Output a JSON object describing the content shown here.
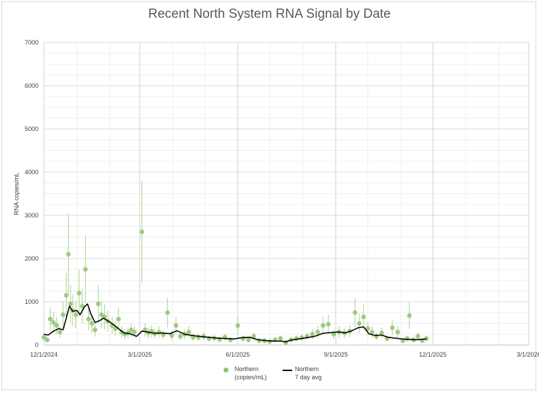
{
  "chart_data": {
    "type": "scatter",
    "title": "Recent North System RNA Signal by Date",
    "ylabel": "RNA copies/mL",
    "xlabel": "",
    "ylim": [
      0,
      7000
    ],
    "xlim": [
      "2024-12-01",
      "2026-03-01"
    ],
    "y_ticks": [
      "0",
      "1000",
      "2000",
      "3000",
      "4000",
      "5000",
      "6000",
      "7000"
    ],
    "x_ticks": [
      "12/1/2024",
      "3/1/2025",
      "6/1/2025",
      "9/1/2025",
      "12/1/2025",
      "3/1/2026"
    ],
    "grid": true,
    "legend_position": "bottom",
    "colors": {
      "points": "#8cc06a",
      "error_bars": "#a9d18e",
      "avg_line": "#000000"
    },
    "series": [
      {
        "name": "Northern (copies/mL)",
        "kind": "scatter-with-error-bars",
        "points": [
          [
            "2024-12-01",
            180
          ],
          [
            "2024-12-04",
            120
          ],
          [
            "2024-12-07",
            600
          ],
          [
            "2024-12-10",
            520
          ],
          [
            "2024-12-13",
            450
          ],
          [
            "2024-12-16",
            300
          ],
          [
            "2024-12-19",
            700
          ],
          [
            "2024-12-22",
            1150
          ],
          [
            "2024-12-24",
            2100
          ],
          [
            "2024-12-26",
            950
          ],
          [
            "2024-12-28",
            800
          ],
          [
            "2024-12-31",
            700
          ],
          [
            "2025-01-03",
            1200
          ],
          [
            "2025-01-06",
            900
          ],
          [
            "2025-01-09",
            1750
          ],
          [
            "2025-01-12",
            600
          ],
          [
            "2025-01-15",
            500
          ],
          [
            "2025-01-18",
            350
          ],
          [
            "2025-01-21",
            950
          ],
          [
            "2025-01-24",
            700
          ],
          [
            "2025-01-27",
            650
          ],
          [
            "2025-01-30",
            550
          ],
          [
            "2025-02-03",
            450
          ],
          [
            "2025-02-06",
            380
          ],
          [
            "2025-02-09",
            600
          ],
          [
            "2025-02-12",
            300
          ],
          [
            "2025-02-15",
            250
          ],
          [
            "2025-02-18",
            280
          ],
          [
            "2025-02-21",
            350
          ],
          [
            "2025-02-24",
            300
          ],
          [
            "2025-03-03",
            2620
          ],
          [
            "2025-03-06",
            350
          ],
          [
            "2025-03-09",
            280
          ],
          [
            "2025-03-12",
            320
          ],
          [
            "2025-03-15",
            260
          ],
          [
            "2025-03-19",
            300
          ],
          [
            "2025-03-23",
            240
          ],
          [
            "2025-03-27",
            750
          ],
          [
            "2025-03-31",
            220
          ],
          [
            "2025-04-04",
            450
          ],
          [
            "2025-04-08",
            200
          ],
          [
            "2025-04-12",
            250
          ],
          [
            "2025-04-16",
            300
          ],
          [
            "2025-04-20",
            180
          ],
          [
            "2025-04-25",
            180
          ],
          [
            "2025-04-30",
            200
          ],
          [
            "2025-05-05",
            150
          ],
          [
            "2025-05-10",
            160
          ],
          [
            "2025-05-15",
            130
          ],
          [
            "2025-05-20",
            180
          ],
          [
            "2025-05-25",
            120
          ],
          [
            "2025-06-01",
            450
          ],
          [
            "2025-06-06",
            150
          ],
          [
            "2025-06-11",
            120
          ],
          [
            "2025-06-16",
            200
          ],
          [
            "2025-06-21",
            100
          ],
          [
            "2025-06-26",
            100
          ],
          [
            "2025-07-01",
            80
          ],
          [
            "2025-07-06",
            120
          ],
          [
            "2025-07-11",
            150
          ],
          [
            "2025-07-16",
            60
          ],
          [
            "2025-07-21",
            120
          ],
          [
            "2025-07-26",
            150
          ],
          [
            "2025-07-31",
            170
          ],
          [
            "2025-08-05",
            200
          ],
          [
            "2025-08-10",
            250
          ],
          [
            "2025-08-15",
            300
          ],
          [
            "2025-08-20",
            450
          ],
          [
            "2025-08-25",
            480
          ],
          [
            "2025-08-30",
            250
          ],
          [
            "2025-09-04",
            300
          ],
          [
            "2025-09-09",
            280
          ],
          [
            "2025-09-14",
            320
          ],
          [
            "2025-09-19",
            750
          ],
          [
            "2025-09-23",
            500
          ],
          [
            "2025-09-27",
            650
          ],
          [
            "2025-10-01",
            380
          ],
          [
            "2025-10-05",
            300
          ],
          [
            "2025-10-09",
            200
          ],
          [
            "2025-10-14",
            280
          ],
          [
            "2025-10-19",
            150
          ],
          [
            "2025-10-24",
            400
          ],
          [
            "2025-10-29",
            300
          ],
          [
            "2025-11-03",
            100
          ],
          [
            "2025-11-07",
            150
          ],
          [
            "2025-11-09",
            680
          ],
          [
            "2025-11-13",
            120
          ],
          [
            "2025-11-17",
            200
          ],
          [
            "2025-11-21",
            100
          ],
          [
            "2025-11-25",
            150
          ]
        ]
      },
      {
        "name": "Northern 7 day avg",
        "kind": "line",
        "points": [
          [
            "2024-12-01",
            250
          ],
          [
            "2024-12-05",
            230
          ],
          [
            "2024-12-10",
            320
          ],
          [
            "2024-12-15",
            380
          ],
          [
            "2024-12-19",
            350
          ],
          [
            "2024-12-22",
            620
          ],
          [
            "2024-12-25",
            900
          ],
          [
            "2024-12-28",
            780
          ],
          [
            "2025-01-01",
            800
          ],
          [
            "2025-01-04",
            700
          ],
          [
            "2025-01-08",
            880
          ],
          [
            "2025-01-11",
            950
          ],
          [
            "2025-01-14",
            720
          ],
          [
            "2025-01-18",
            520
          ],
          [
            "2025-01-22",
            560
          ],
          [
            "2025-01-26",
            620
          ],
          [
            "2025-01-30",
            560
          ],
          [
            "2025-02-04",
            480
          ],
          [
            "2025-02-09",
            380
          ],
          [
            "2025-02-14",
            280
          ],
          [
            "2025-02-20",
            260
          ],
          [
            "2025-02-26",
            200
          ],
          [
            "2025-03-03",
            320
          ],
          [
            "2025-03-08",
            300
          ],
          [
            "2025-03-15",
            270
          ],
          [
            "2025-03-22",
            280
          ],
          [
            "2025-03-29",
            260
          ],
          [
            "2025-04-05",
            330
          ],
          [
            "2025-04-12",
            250
          ],
          [
            "2025-04-19",
            220
          ],
          [
            "2025-04-26",
            200
          ],
          [
            "2025-05-04",
            180
          ],
          [
            "2025-05-12",
            160
          ],
          [
            "2025-05-20",
            150
          ],
          [
            "2025-05-28",
            140
          ],
          [
            "2025-06-05",
            170
          ],
          [
            "2025-06-12",
            180
          ],
          [
            "2025-06-20",
            120
          ],
          [
            "2025-06-28",
            100
          ],
          [
            "2025-07-05",
            90
          ],
          [
            "2025-07-12",
            90
          ],
          [
            "2025-07-16",
            70
          ],
          [
            "2025-07-20",
            110
          ],
          [
            "2025-07-28",
            140
          ],
          [
            "2025-08-05",
            170
          ],
          [
            "2025-08-12",
            200
          ],
          [
            "2025-08-20",
            270
          ],
          [
            "2025-08-28",
            290
          ],
          [
            "2025-09-04",
            300
          ],
          [
            "2025-09-10",
            280
          ],
          [
            "2025-09-16",
            330
          ],
          [
            "2025-09-22",
            400
          ],
          [
            "2025-09-27",
            420
          ],
          [
            "2025-10-02",
            260
          ],
          [
            "2025-10-08",
            220
          ],
          [
            "2025-10-14",
            230
          ],
          [
            "2025-10-20",
            180
          ],
          [
            "2025-10-26",
            160
          ],
          [
            "2025-11-02",
            140
          ],
          [
            "2025-11-08",
            130
          ],
          [
            "2025-11-14",
            120
          ],
          [
            "2025-11-20",
            130
          ],
          [
            "2025-11-25",
            140
          ]
        ]
      }
    ]
  },
  "legend": {
    "scatter_line1": "Northern",
    "scatter_line2": "(copies/mL)",
    "avg_line1": "Northern",
    "avg_line2": "7 day avg"
  }
}
